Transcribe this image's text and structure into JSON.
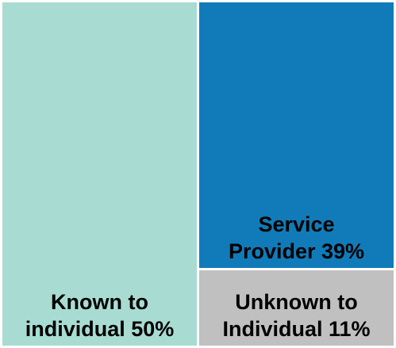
{
  "chart_data": {
    "type": "treemap",
    "items": [
      {
        "label_lines": [
          "Known to",
          "individual 50%"
        ],
        "value": 50,
        "color": "#a8dcd3"
      },
      {
        "label_lines": [
          "Service",
          "Provider 39%"
        ],
        "value": 39,
        "color": "#117bb9"
      },
      {
        "label_lines": [
          "Unknown to",
          "Individual 11%"
        ],
        "value": 11,
        "color": "#c0c0c0"
      }
    ]
  }
}
